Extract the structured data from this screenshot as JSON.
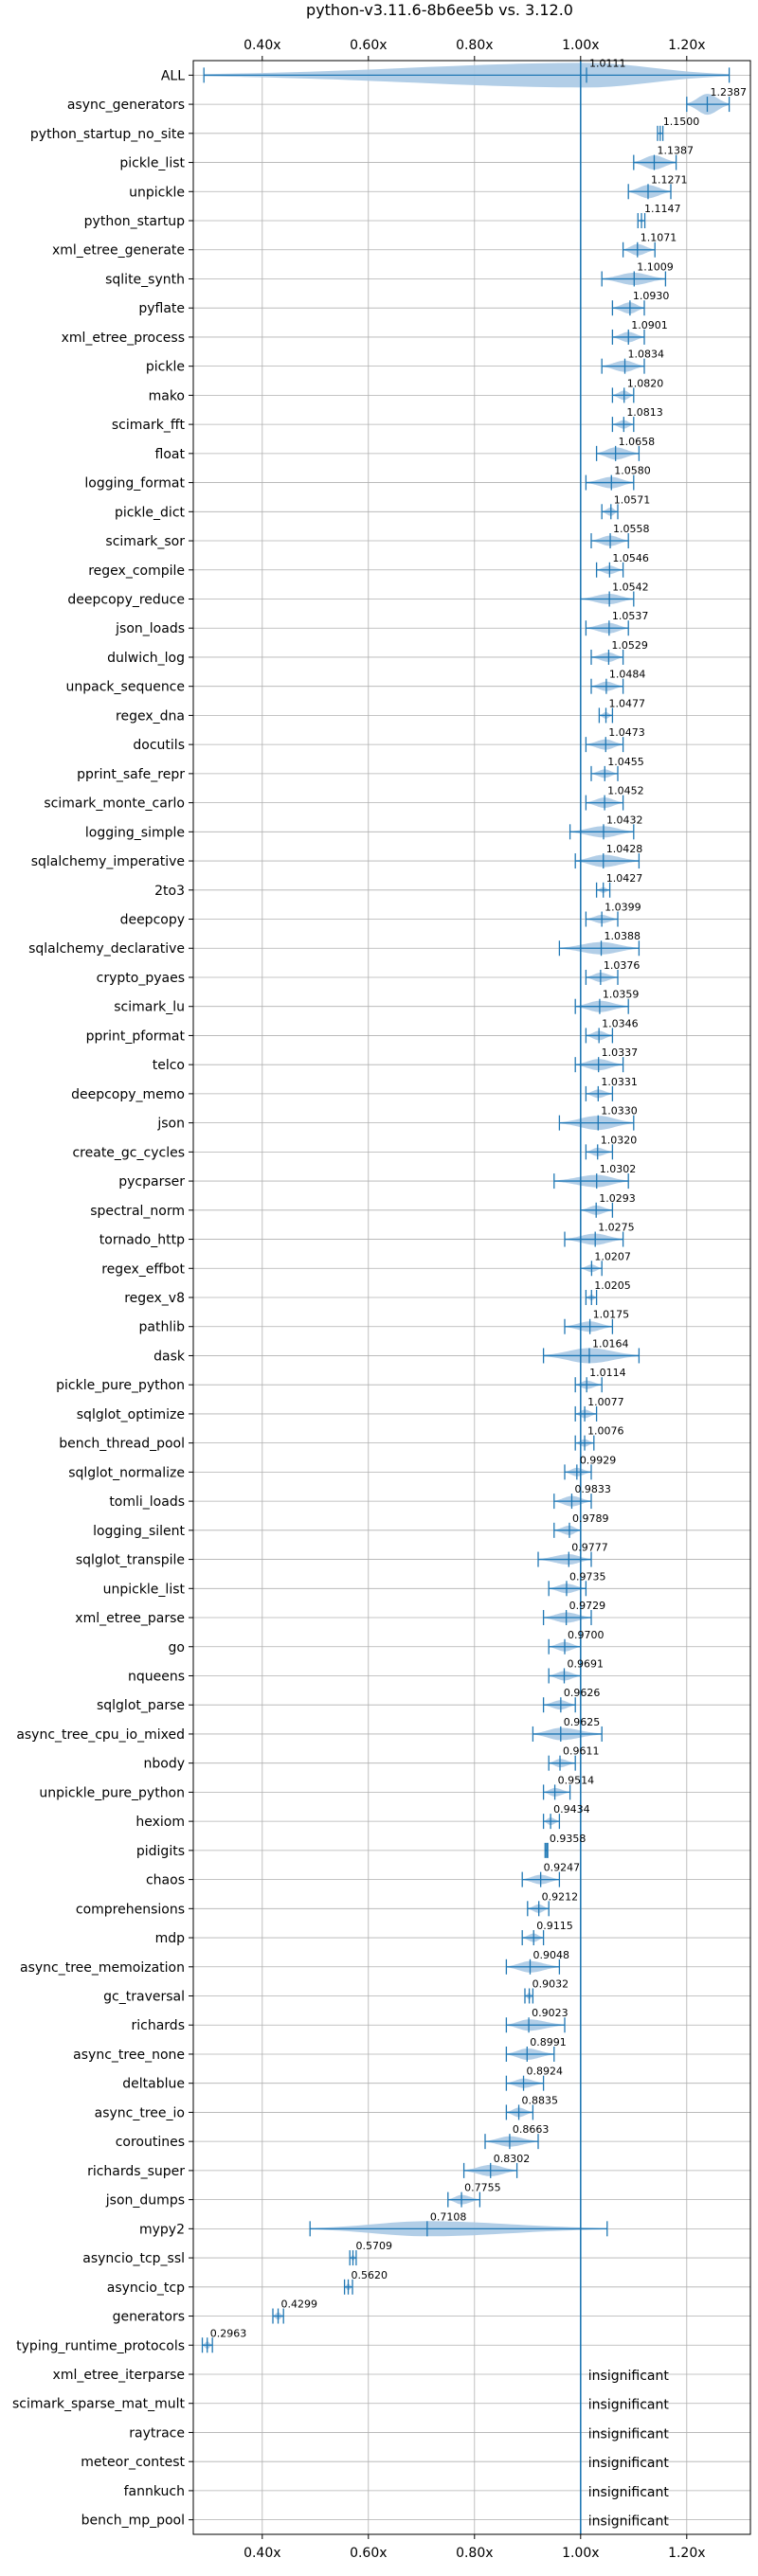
{
  "chart_data": {
    "type": "violin",
    "title": "python-v3.11.6-8b6ee5b vs. 3.12.0",
    "x_ticks": [
      0.4,
      0.6,
      0.8,
      1.0,
      1.2
    ],
    "x_tick_labels": [
      "0.40x",
      "0.60x",
      "0.80x",
      "1.00x",
      "1.20x"
    ],
    "xlim": [
      0.27,
      1.32
    ],
    "reference_line": 1.0,
    "colors": {
      "accent": "#1f77b4",
      "violin": "#aac9e4",
      "grid": "#b0b0b0"
    },
    "insignificant_label": "insignificant",
    "benchmarks": [
      {
        "name": "ALL",
        "value": 1.0111,
        "label": "1.0111",
        "lo": 0.29,
        "hi": 1.28,
        "w": 2.6
      },
      {
        "name": "async_generators",
        "value": 1.2387,
        "label": "1.2387",
        "lo": 1.2,
        "hi": 1.28,
        "w": 2.2
      },
      {
        "name": "python_startup_no_site",
        "value": 1.15,
        "label": "1.1500",
        "lo": 1.145,
        "hi": 1.155,
        "w": 0.35
      },
      {
        "name": "pickle_list",
        "value": 1.1387,
        "label": "1.1387",
        "lo": 1.1,
        "hi": 1.18,
        "w": 1.5
      },
      {
        "name": "unpickle",
        "value": 1.1271,
        "label": "1.1271",
        "lo": 1.09,
        "hi": 1.17,
        "w": 1.4
      },
      {
        "name": "python_startup",
        "value": 1.1147,
        "label": "1.1147",
        "lo": 1.108,
        "hi": 1.121,
        "w": 0.35
      },
      {
        "name": "xml_etree_generate",
        "value": 1.1071,
        "label": "1.1071",
        "lo": 1.08,
        "hi": 1.14,
        "w": 1.2
      },
      {
        "name": "sqlite_synth",
        "value": 1.1009,
        "label": "1.1009",
        "lo": 1.04,
        "hi": 1.16,
        "w": 1.3
      },
      {
        "name": "pyflate",
        "value": 1.093,
        "label": "1.0930",
        "lo": 1.06,
        "hi": 1.12,
        "w": 1.2
      },
      {
        "name": "xml_etree_process",
        "value": 1.0901,
        "label": "1.0901",
        "lo": 1.06,
        "hi": 1.12,
        "w": 1.1
      },
      {
        "name": "pickle",
        "value": 1.0834,
        "label": "1.0834",
        "lo": 1.04,
        "hi": 1.12,
        "w": 1.2
      },
      {
        "name": "mako",
        "value": 1.082,
        "label": "1.0820",
        "lo": 1.06,
        "hi": 1.1,
        "w": 1.0
      },
      {
        "name": "scimark_fft",
        "value": 1.0813,
        "label": "1.0813",
        "lo": 1.06,
        "hi": 1.1,
        "w": 0.9
      },
      {
        "name": "float",
        "value": 1.0658,
        "label": "1.0658",
        "lo": 1.03,
        "hi": 1.11,
        "w": 1.3
      },
      {
        "name": "logging_format",
        "value": 1.058,
        "label": "1.0580",
        "lo": 1.01,
        "hi": 1.1,
        "w": 1.2
      },
      {
        "name": "pickle_dict",
        "value": 1.0571,
        "label": "1.0571",
        "lo": 1.04,
        "hi": 1.07,
        "w": 0.9
      },
      {
        "name": "scimark_sor",
        "value": 1.0558,
        "label": "1.0558",
        "lo": 1.02,
        "hi": 1.09,
        "w": 1.1
      },
      {
        "name": "regex_compile",
        "value": 1.0546,
        "label": "1.0546",
        "lo": 1.03,
        "hi": 1.08,
        "w": 0.9
      },
      {
        "name": "deepcopy_reduce",
        "value": 1.0542,
        "label": "1.0542",
        "lo": 1.0,
        "hi": 1.1,
        "w": 1.1
      },
      {
        "name": "json_loads",
        "value": 1.0537,
        "label": "1.0537",
        "lo": 1.01,
        "hi": 1.09,
        "w": 1.1
      },
      {
        "name": "dulwich_log",
        "value": 1.0529,
        "label": "1.0529",
        "lo": 1.02,
        "hi": 1.08,
        "w": 1.0
      },
      {
        "name": "unpack_sequence",
        "value": 1.0484,
        "label": "1.0484",
        "lo": 1.02,
        "hi": 1.08,
        "w": 1.0
      },
      {
        "name": "regex_dna",
        "value": 1.0477,
        "label": "1.0477",
        "lo": 1.035,
        "hi": 1.06,
        "w": 0.7
      },
      {
        "name": "docutils",
        "value": 1.0473,
        "label": "1.0473",
        "lo": 1.01,
        "hi": 1.08,
        "w": 1.1
      },
      {
        "name": "pprint_safe_repr",
        "value": 1.0455,
        "label": "1.0455",
        "lo": 1.02,
        "hi": 1.07,
        "w": 0.9
      },
      {
        "name": "scimark_monte_carlo",
        "value": 1.0452,
        "label": "1.0452",
        "lo": 1.01,
        "hi": 1.08,
        "w": 1.1
      },
      {
        "name": "logging_simple",
        "value": 1.0432,
        "label": "1.0432",
        "lo": 0.98,
        "hi": 1.1,
        "w": 1.2
      },
      {
        "name": "sqlalchemy_imperative",
        "value": 1.0428,
        "label": "1.0428",
        "lo": 0.99,
        "hi": 1.11,
        "w": 1.3
      },
      {
        "name": "2to3",
        "value": 1.0427,
        "label": "1.0427",
        "lo": 1.03,
        "hi": 1.055,
        "w": 0.6
      },
      {
        "name": "deepcopy",
        "value": 1.0399,
        "label": "1.0399",
        "lo": 1.01,
        "hi": 1.07,
        "w": 0.9
      },
      {
        "name": "sqlalchemy_declarative",
        "value": 1.0388,
        "label": "1.0388",
        "lo": 0.96,
        "hi": 1.11,
        "w": 1.3
      },
      {
        "name": "crypto_pyaes",
        "value": 1.0376,
        "label": "1.0376",
        "lo": 1.01,
        "hi": 1.07,
        "w": 1.0
      },
      {
        "name": "scimark_lu",
        "value": 1.0359,
        "label": "1.0359",
        "lo": 0.99,
        "hi": 1.09,
        "w": 1.2
      },
      {
        "name": "pprint_pformat",
        "value": 1.0346,
        "label": "1.0346",
        "lo": 1.01,
        "hi": 1.06,
        "w": 1.0
      },
      {
        "name": "telco",
        "value": 1.0337,
        "label": "1.0337",
        "lo": 0.99,
        "hi": 1.08,
        "w": 1.2
      },
      {
        "name": "deepcopy_memo",
        "value": 1.0331,
        "label": "1.0331",
        "lo": 1.01,
        "hi": 1.06,
        "w": 0.9
      },
      {
        "name": "json",
        "value": 1.033,
        "label": "1.0330",
        "lo": 0.96,
        "hi": 1.1,
        "w": 1.5
      },
      {
        "name": "create_gc_cycles",
        "value": 1.032,
        "label": "1.0320",
        "lo": 1.01,
        "hi": 1.06,
        "w": 0.9
      },
      {
        "name": "pycparser",
        "value": 1.0302,
        "label": "1.0302",
        "lo": 0.95,
        "hi": 1.09,
        "w": 1.3
      },
      {
        "name": "spectral_norm",
        "value": 1.0293,
        "label": "1.0293",
        "lo": 1.0,
        "hi": 1.06,
        "w": 1.0
      },
      {
        "name": "tornado_http",
        "value": 1.0275,
        "label": "1.0275",
        "lo": 0.97,
        "hi": 1.08,
        "w": 1.2
      },
      {
        "name": "regex_effbot",
        "value": 1.0207,
        "label": "1.0207",
        "lo": 1.0,
        "hi": 1.04,
        "w": 0.8
      },
      {
        "name": "regex_v8",
        "value": 1.0205,
        "label": "1.0205",
        "lo": 1.01,
        "hi": 1.03,
        "w": 0.6
      },
      {
        "name": "pathlib",
        "value": 1.0175,
        "label": "1.0175",
        "lo": 0.97,
        "hi": 1.06,
        "w": 1.1
      },
      {
        "name": "dask",
        "value": 1.0164,
        "label": "1.0164",
        "lo": 0.93,
        "hi": 1.11,
        "w": 1.6
      },
      {
        "name": "pickle_pure_python",
        "value": 1.0114,
        "label": "1.0114",
        "lo": 0.99,
        "hi": 1.04,
        "w": 0.9
      },
      {
        "name": "sqlglot_optimize",
        "value": 1.0077,
        "label": "1.0077",
        "lo": 0.99,
        "hi": 1.03,
        "w": 0.9
      },
      {
        "name": "bench_thread_pool",
        "value": 1.0076,
        "label": "1.0076",
        "lo": 0.99,
        "hi": 1.025,
        "w": 0.8
      },
      {
        "name": "sqlglot_normalize",
        "value": 0.9929,
        "label": "0.9929",
        "lo": 0.97,
        "hi": 1.02,
        "w": 0.9
      },
      {
        "name": "tomli_loads",
        "value": 0.9833,
        "label": "0.9833",
        "lo": 0.95,
        "hi": 1.02,
        "w": 1.1
      },
      {
        "name": "logging_silent",
        "value": 0.9789,
        "label": "0.9789",
        "lo": 0.95,
        "hi": 1.0,
        "w": 1.0
      },
      {
        "name": "sqlglot_transpile",
        "value": 0.9777,
        "label": "0.9777",
        "lo": 0.92,
        "hi": 1.02,
        "w": 1.1
      },
      {
        "name": "unpickle_list",
        "value": 0.9735,
        "label": "0.9735",
        "lo": 0.94,
        "hi": 1.01,
        "w": 1.0
      },
      {
        "name": "xml_etree_parse",
        "value": 0.9729,
        "label": "0.9729",
        "lo": 0.93,
        "hi": 1.02,
        "w": 1.1
      },
      {
        "name": "go",
        "value": 0.97,
        "label": "0.9700",
        "lo": 0.94,
        "hi": 1.0,
        "w": 1.0
      },
      {
        "name": "nqueens",
        "value": 0.9691,
        "label": "0.9691",
        "lo": 0.94,
        "hi": 1.0,
        "w": 1.0
      },
      {
        "name": "sqlglot_parse",
        "value": 0.9626,
        "label": "0.9626",
        "lo": 0.93,
        "hi": 0.99,
        "w": 1.0
      },
      {
        "name": "async_tree_cpu_io_mixed",
        "value": 0.9625,
        "label": "0.9625",
        "lo": 0.91,
        "hi": 1.04,
        "w": 1.3
      },
      {
        "name": "nbody",
        "value": 0.9611,
        "label": "0.9611",
        "lo": 0.94,
        "hi": 0.99,
        "w": 0.9
      },
      {
        "name": "unpickle_pure_python",
        "value": 0.9514,
        "label": "0.9514",
        "lo": 0.93,
        "hi": 0.98,
        "w": 0.9
      },
      {
        "name": "hexiom",
        "value": 0.9434,
        "label": "0.9434",
        "lo": 0.93,
        "hi": 0.96,
        "w": 0.8
      },
      {
        "name": "pidigits",
        "value": 0.9358,
        "label": "0.9358",
        "lo": 0.933,
        "hi": 0.938,
        "w": 0.3
      },
      {
        "name": "chaos",
        "value": 0.9247,
        "label": "0.9247",
        "lo": 0.89,
        "hi": 0.96,
        "w": 1.0
      },
      {
        "name": "comprehensions",
        "value": 0.9212,
        "label": "0.9212",
        "lo": 0.9,
        "hi": 0.94,
        "w": 0.9
      },
      {
        "name": "mdp",
        "value": 0.9115,
        "label": "0.9115",
        "lo": 0.89,
        "hi": 0.93,
        "w": 0.9
      },
      {
        "name": "async_tree_memoization",
        "value": 0.9048,
        "label": "0.9048",
        "lo": 0.86,
        "hi": 0.96,
        "w": 1.2
      },
      {
        "name": "gc_traversal",
        "value": 0.9032,
        "label": "0.9032",
        "lo": 0.895,
        "hi": 0.91,
        "w": 0.7
      },
      {
        "name": "richards",
        "value": 0.9023,
        "label": "0.9023",
        "lo": 0.86,
        "hi": 0.97,
        "w": 1.2
      },
      {
        "name": "async_tree_none",
        "value": 0.8991,
        "label": "0.8991",
        "lo": 0.86,
        "hi": 0.95,
        "w": 1.2
      },
      {
        "name": "deltablue",
        "value": 0.8924,
        "label": "0.8924",
        "lo": 0.86,
        "hi": 0.93,
        "w": 1.0
      },
      {
        "name": "async_tree_io",
        "value": 0.8835,
        "label": "0.8835",
        "lo": 0.86,
        "hi": 0.91,
        "w": 1.0
      },
      {
        "name": "coroutines",
        "value": 0.8663,
        "label": "0.8663",
        "lo": 0.82,
        "hi": 0.92,
        "w": 1.1
      },
      {
        "name": "richards_super",
        "value": 0.8302,
        "label": "0.8302",
        "lo": 0.78,
        "hi": 0.88,
        "w": 1.2
      },
      {
        "name": "json_dumps",
        "value": 0.7755,
        "label": "0.7755",
        "lo": 0.75,
        "hi": 0.81,
        "w": 1.0
      },
      {
        "name": "mypy2",
        "value": 0.7108,
        "label": "0.7108",
        "lo": 0.49,
        "hi": 1.05,
        "w": 1.6
      },
      {
        "name": "asyncio_tcp_ssl",
        "value": 0.5709,
        "label": "0.5709",
        "lo": 0.565,
        "hi": 0.577,
        "w": 0.6
      },
      {
        "name": "asyncio_tcp",
        "value": 0.562,
        "label": "0.5620",
        "lo": 0.555,
        "hi": 0.57,
        "w": 0.7
      },
      {
        "name": "generators",
        "value": 0.4299,
        "label": "0.4299",
        "lo": 0.42,
        "hi": 0.44,
        "w": 0.8
      },
      {
        "name": "typing_runtime_protocols",
        "value": 0.2963,
        "label": "0.2963",
        "lo": 0.287,
        "hi": 0.306,
        "w": 0.8
      },
      {
        "name": "xml_etree_iterparse",
        "insignificant": true
      },
      {
        "name": "scimark_sparse_mat_mult",
        "insignificant": true
      },
      {
        "name": "raytrace",
        "insignificant": true
      },
      {
        "name": "meteor_contest",
        "insignificant": true
      },
      {
        "name": "fannkuch",
        "insignificant": true
      },
      {
        "name": "bench_mp_pool",
        "insignificant": true
      }
    ]
  }
}
